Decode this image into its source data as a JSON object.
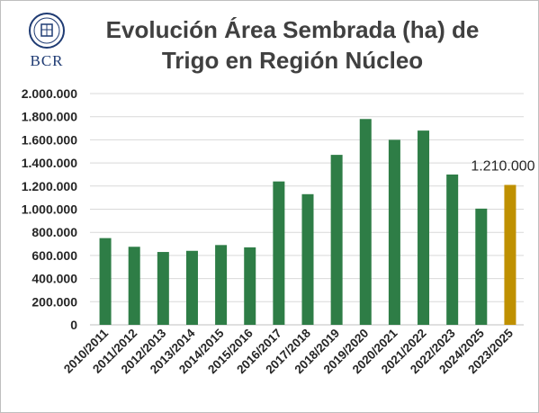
{
  "header": {
    "logo_text": "BCR",
    "title_line1": "Evolución Área Sembrada (ha) de",
    "title_line2": "Trigo en Región Núcleo"
  },
  "chart_data": {
    "type": "bar",
    "title": "Evolución Área Sembrada (ha) de Trigo en Región Núcleo",
    "categories": [
      "2010/2011",
      "2011/2012",
      "2012/2013",
      "2013/2014",
      "2014/2015",
      "2015/2016",
      "2016/2017",
      "2017/2018",
      "2018/2019",
      "2019/2020",
      "2020/2021",
      "2021/2022",
      "2022/2023",
      "2024/2025",
      "2023/2025"
    ],
    "values": [
      750000,
      675000,
      630000,
      640000,
      690000,
      670000,
      1240000,
      1130000,
      1470000,
      1780000,
      1600000,
      1680000,
      1300000,
      1005000,
      1210000
    ],
    "bar_colors": [
      "#2e7d46",
      "#2e7d46",
      "#2e7d46",
      "#2e7d46",
      "#2e7d46",
      "#2e7d46",
      "#2e7d46",
      "#2e7d46",
      "#2e7d46",
      "#2e7d46",
      "#2e7d46",
      "#2e7d46",
      "#2e7d46",
      "#2e7d46",
      "#bf9000"
    ],
    "data_labels": [
      null,
      null,
      null,
      null,
      null,
      null,
      null,
      null,
      null,
      null,
      null,
      null,
      null,
      null,
      "1.210.000"
    ],
    "y_ticks": [
      "0",
      "200.000",
      "400.000",
      "600.000",
      "800.000",
      "1.000.000",
      "1.200.000",
      "1.400.000",
      "1.600.000",
      "1.800.000",
      "2.000.000"
    ],
    "ylim": [
      0,
      2000000
    ],
    "xlabel": "",
    "ylabel": "",
    "grid": true,
    "legend": "none"
  }
}
